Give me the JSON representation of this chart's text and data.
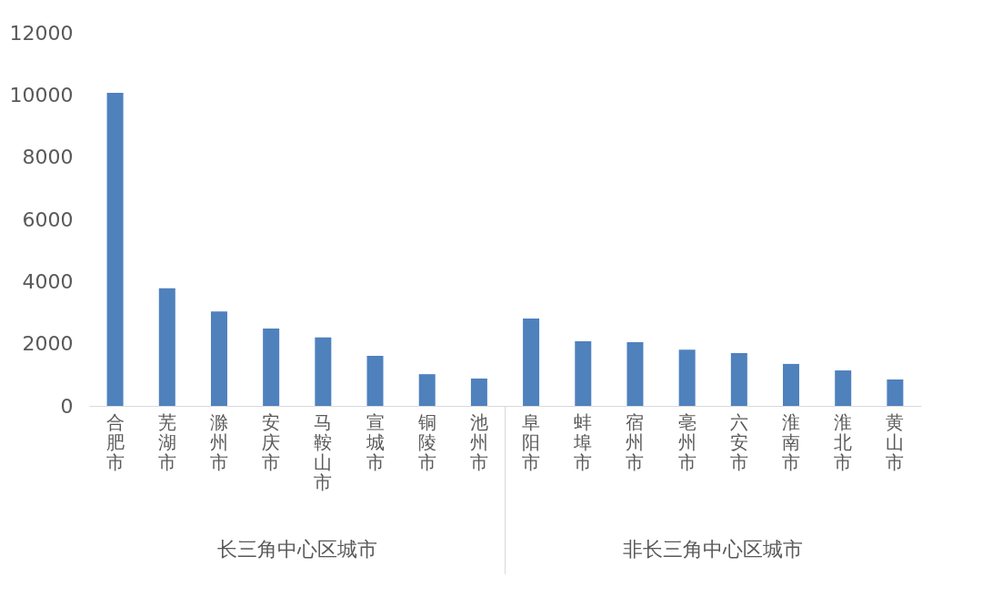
{
  "chart_data": {
    "type": "bar",
    "categories": [
      "合肥市",
      "芜湖市",
      "滁州市",
      "安庆市",
      "马鞍山市",
      "宣城市",
      "铜陵市",
      "池州市",
      "阜阳市",
      "蚌埠市",
      "宿州市",
      "亳州市",
      "六安市",
      "淮南市",
      "淮北市",
      "黄山市"
    ],
    "values": [
      10070,
      3780,
      3040,
      2490,
      2200,
      1610,
      1020,
      880,
      2810,
      2080,
      2050,
      1810,
      1700,
      1350,
      1140,
      850
    ],
    "color": "#4f81bd",
    "ylim": [
      0,
      12000
    ],
    "yticks": [
      0,
      2000,
      4000,
      6000,
      8000,
      10000,
      12000
    ],
    "grid": false,
    "annotations": [
      "长三角中心区城市",
      "非长三角中心区城市"
    ]
  }
}
